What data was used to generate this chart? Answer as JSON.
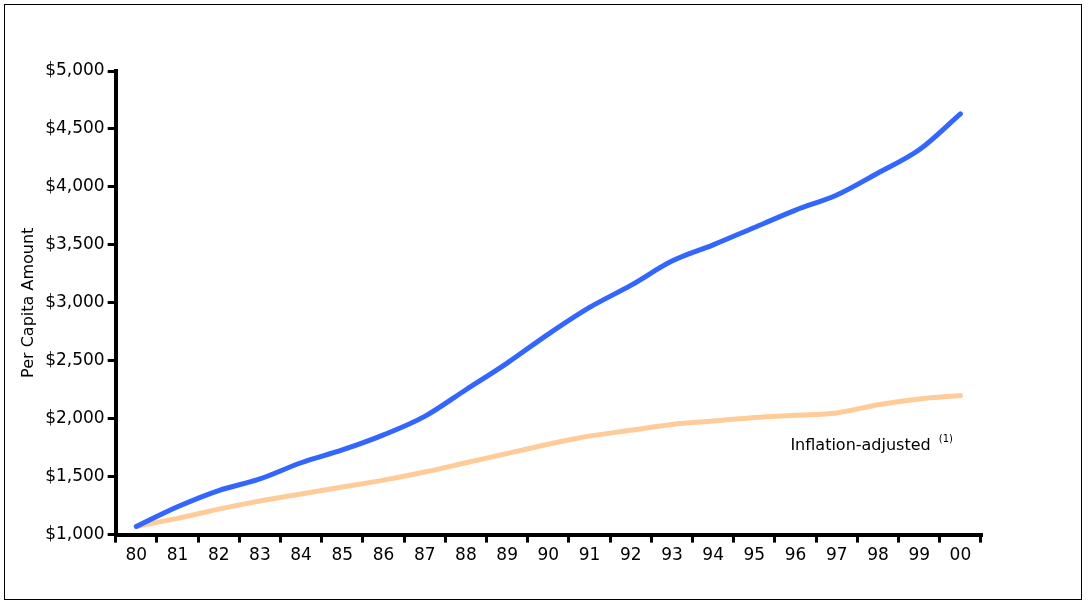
{
  "chart_data": {
    "type": "line",
    "ylabel": "Per Capita Amount",
    "categories": [
      "80",
      "81",
      "82",
      "83",
      "84",
      "85",
      "86",
      "87",
      "88",
      "89",
      "90",
      "91",
      "92",
      "93",
      "94",
      "95",
      "96",
      "97",
      "98",
      "99",
      "00"
    ],
    "series": [
      {
        "color": "#3366ff",
        "values": [
          1070,
          1240,
          1380,
          1480,
          1620,
          1730,
          1860,
          2020,
          2250,
          2480,
          2730,
          2960,
          3150,
          3360,
          3500,
          3650,
          3800,
          3930,
          4120,
          4320,
          4630
        ]
      },
      {
        "name": "Inflation-adjusted $^{(1)}$",
        "color": "#ffcc99",
        "values": [
          1070,
          1140,
          1220,
          1290,
          1350,
          1410,
          1470,
          1540,
          1620,
          1700,
          1780,
          1850,
          1900,
          1950,
          1980,
          2010,
          2030,
          2050,
          2120,
          2170,
          2200
        ]
      }
    ],
    "ylim": [
      1000,
      5000
    ],
    "yticks": [
      {
        "value": 1000,
        "label": "$1,000"
      },
      {
        "value": 1500,
        "label": "$1,500"
      },
      {
        "value": 2000,
        "label": "$2,000"
      },
      {
        "value": 2500,
        "label": "$2,500"
      },
      {
        "value": 3000,
        "label": "$3,000"
      },
      {
        "value": 3500,
        "label": "$3,500"
      },
      {
        "value": 4000,
        "label": "$4,000"
      },
      {
        "value": 4500,
        "label": "$4,500"
      },
      {
        "value": 5000,
        "label": "$5,000"
      }
    ],
    "grid": false,
    "legend": false,
    "marker": "none",
    "line_style": "solid"
  }
}
